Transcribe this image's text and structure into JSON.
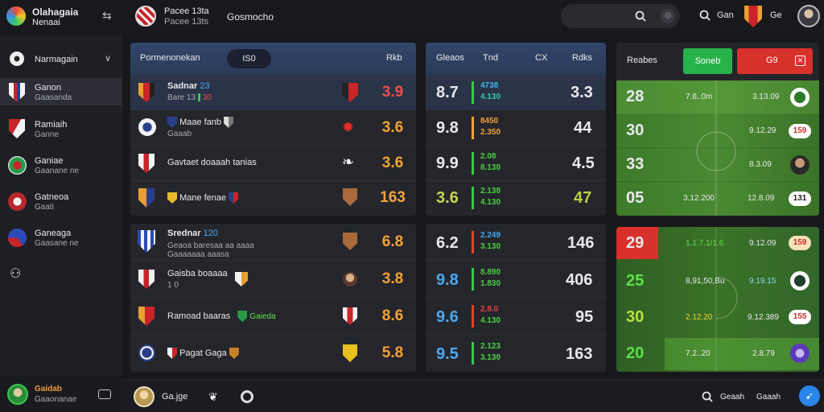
{
  "app": {
    "name": "Olahagaia",
    "subtitle": "Nenaai"
  },
  "topbar": {
    "match_title": "Pacee 13ta",
    "match_subtitle": "Pacee 13ts",
    "section": "Gosmocho",
    "user_label": "Gan",
    "team_label": "Ge"
  },
  "sidebar": {
    "header": "Narmagain",
    "items": [
      {
        "title": "Ganon",
        "subtitle": "Gaasanda",
        "active": true
      },
      {
        "title": "Ramiaih",
        "subtitle": "Ganne"
      },
      {
        "title": "Ganiae",
        "subtitle": "Gaanane ne"
      },
      {
        "title": "Gatneoa",
        "subtitle": "Gaati"
      },
      {
        "title": "Ganeaga",
        "subtitle": "Gaasane ne"
      }
    ],
    "footer": {
      "name": "Gaidab",
      "subtitle": "Gaaonanae"
    }
  },
  "bottombar": {
    "user": "Ga.jge",
    "link_a": "Geaah",
    "link_b": "Gaaah"
  },
  "matches": {
    "header": {
      "title": "Pormenonekan",
      "pill": "IS0",
      "right": "Rkb"
    },
    "rows": [
      {
        "name": "Sadnar",
        "tag": "23",
        "sub": "Bare 13",
        "sub_tag": "30",
        "odds": "3.9"
      },
      {
        "name": "Maae fanb",
        "sub": "Gaaab",
        "odds": "3.6"
      },
      {
        "name": "Gavtaet doaaah tanias",
        "odds": "3.6"
      },
      {
        "name": "Mane fenae",
        "odds": "163"
      },
      {
        "name": "Srednar",
        "tag": "120",
        "sub": "Geaoa baresaa aa aaaa",
        "sub2": "Gaaaaaaa aaasa",
        "odds": "6.8"
      },
      {
        "name": "Gaisba boaaaa",
        "sub": "1 0",
        "odds": "3.8"
      },
      {
        "name": "Ramoad baaras",
        "tag": "Gaieda",
        "odds": "8.6"
      },
      {
        "name": "Pagat Gaga",
        "odds": "5.8"
      }
    ]
  },
  "odds": {
    "header": {
      "col1": "Gleaos",
      "col2": "Tnd",
      "col3": "CX",
      "col4": "Rdks"
    },
    "rows": [
      {
        "value": "8.7",
        "line1": "4738",
        "line2": "4.130",
        "total": "3.3"
      },
      {
        "value": "9.8",
        "line1": "8450",
        "line2": "2.350",
        "total": "44"
      },
      {
        "value": "9.9",
        "line1": "2.08",
        "line2": "8.130",
        "total": "4.5"
      },
      {
        "value": "3.6",
        "line1": "2.138",
        "line2": "4.130",
        "total": "47"
      },
      {
        "value": "6.2",
        "line1": "2.249",
        "line2": "3.130",
        "total": "146"
      },
      {
        "value": "9.8",
        "line1": "8.890",
        "line2": "1.830",
        "total": "406"
      },
      {
        "value": "9.6",
        "line1": "2.8.0",
        "line2": "4.130",
        "total": "95"
      },
      {
        "value": "9.5",
        "line1": "2.123",
        "line2": "3.130",
        "total": "163"
      }
    ]
  },
  "scores": {
    "header": {
      "title": "Reabes",
      "btn_green": "Soneb",
      "btn_red": "G9"
    },
    "rows": [
      {
        "score": "28",
        "time": "7.8..0m",
        "stat": "3.13.09"
      },
      {
        "score": "30",
        "stat": "9.12.29",
        "badge": "159"
      },
      {
        "score": "33",
        "stat": "8.3.09"
      },
      {
        "score": "05",
        "time": "3.12.200",
        "stat": "12.8.09",
        "badge": "131"
      },
      {
        "score": "29",
        "time": "1.1.7.1/1.6",
        "stat": "9.12.09",
        "badge": "159"
      },
      {
        "score": "25",
        "time": "8,91,50,Bu",
        "stat": "9.19.15"
      },
      {
        "score": "30",
        "time": "2.12.20",
        "stat": "9.12.389",
        "badge": "155"
      },
      {
        "score": "20",
        "time": "7.2..20",
        "stat": "2.8.79"
      }
    ]
  },
  "colors": {
    "accent_green": "#27b24a",
    "accent_red": "#d8302a",
    "panel_header": "#2c3d5c",
    "pitch_green": "#3e7a2c",
    "odds_orange": "#f2a33a",
    "odds_red": "#e8524a",
    "value_blue": "#4aa8f0"
  }
}
